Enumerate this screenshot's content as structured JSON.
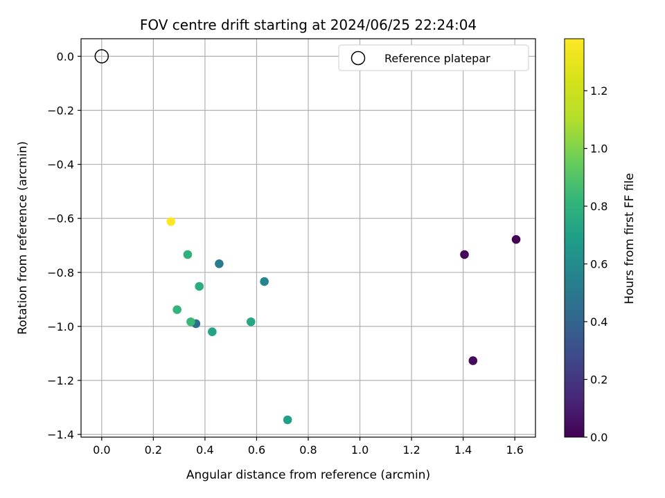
{
  "chart_data": {
    "type": "scatter",
    "title": "FOV centre drift starting at 2024/06/25 22:24:04",
    "xlabel": "Angular distance from reference (arcmin)",
    "ylabel": "Rotation from reference (arcmin)",
    "xlim": [
      -0.08,
      1.68
    ],
    "ylim": [
      -1.41,
      0.065
    ],
    "xticks": [
      0.0,
      0.2,
      0.4,
      0.6,
      0.8,
      1.0,
      1.2,
      1.4,
      1.6
    ],
    "xtick_labels": [
      "0.0",
      "0.2",
      "0.4",
      "0.6",
      "0.8",
      "1.0",
      "1.2",
      "1.4",
      "1.6"
    ],
    "yticks": [
      0.0,
      -0.2,
      -0.4,
      -0.6,
      -0.8,
      -1.0,
      -1.2,
      -1.4
    ],
    "ytick_labels": [
      "0.0",
      "−0.2",
      "−0.4",
      "−0.6",
      "−0.8",
      "−1.0",
      "−1.2",
      "−1.4"
    ],
    "grid": true,
    "legend": {
      "placement": "top-right",
      "entries": [
        {
          "label": "Reference platepar",
          "marker": "open-circle"
        }
      ]
    },
    "reference_point": {
      "x": 0.0,
      "y": 0.0
    },
    "colorbar": {
      "label": "Hours from first FF file",
      "colormap": "viridis",
      "range": [
        0.0,
        1.38
      ],
      "ticks": [
        0.0,
        0.2,
        0.4,
        0.6,
        0.8,
        1.0,
        1.2
      ],
      "tick_labels": [
        "0.0",
        "0.2",
        "0.4",
        "0.6",
        "0.8",
        "1.0",
        "1.2"
      ]
    },
    "points": [
      {
        "x": 1.605,
        "y": -0.678,
        "hours": 0.0
      },
      {
        "x": 1.405,
        "y": -0.734,
        "hours": 0.02
      },
      {
        "x": 1.438,
        "y": -1.127,
        "hours": 0.04
      },
      {
        "x": 0.365,
        "y": -0.99,
        "hours": 0.45
      },
      {
        "x": 0.455,
        "y": -0.768,
        "hours": 0.52
      },
      {
        "x": 0.63,
        "y": -0.834,
        "hours": 0.56
      },
      {
        "x": 0.72,
        "y": -1.346,
        "hours": 0.7
      },
      {
        "x": 0.428,
        "y": -1.02,
        "hours": 0.72
      },
      {
        "x": 0.578,
        "y": -0.983,
        "hours": 0.74
      },
      {
        "x": 0.378,
        "y": -0.852,
        "hours": 0.77
      },
      {
        "x": 0.333,
        "y": -0.734,
        "hours": 0.79
      },
      {
        "x": 0.292,
        "y": -0.938,
        "hours": 0.81
      },
      {
        "x": 0.345,
        "y": -0.983,
        "hours": 0.84
      },
      {
        "x": 0.268,
        "y": -0.612,
        "hours": 1.38
      }
    ]
  }
}
